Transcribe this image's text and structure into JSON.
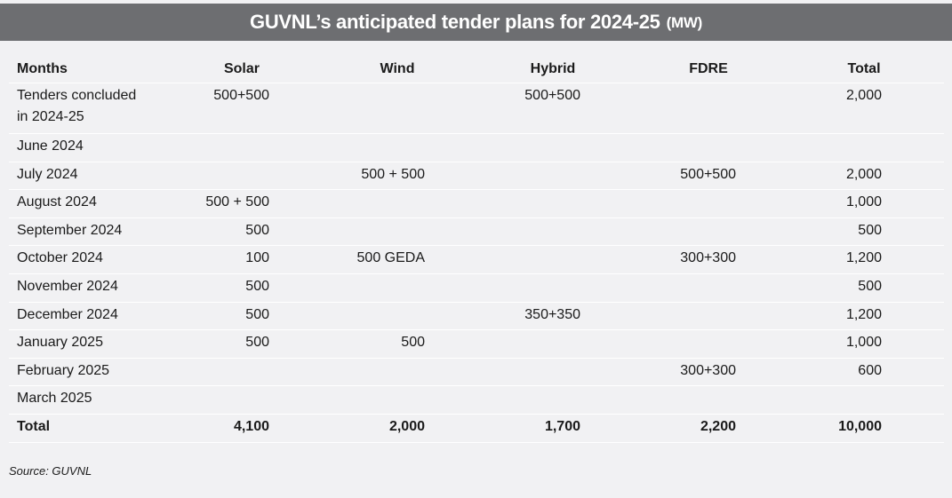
{
  "title": {
    "main": "GUVNL’s anticipated tender plans for 2024-25",
    "unit": "(MW)"
  },
  "table": {
    "headers": [
      "Months",
      "Solar",
      "Wind",
      "Hybrid",
      "FDRE",
      "Total"
    ],
    "rows": [
      [
        "Tenders concluded in 2024-25",
        "500+500",
        "",
        "500+500",
        "",
        "2,000"
      ],
      [
        "June 2024",
        "",
        "",
        "",
        "",
        ""
      ],
      [
        "July 2024",
        "",
        "500 + 500",
        "",
        "500+500",
        "2,000"
      ],
      [
        "August 2024",
        "500 + 500",
        "",
        "",
        "",
        "1,000"
      ],
      [
        "September 2024",
        "500",
        "",
        "",
        "",
        "500"
      ],
      [
        "October 2024",
        "100",
        "500 GEDA",
        "",
        "300+300",
        "1,200"
      ],
      [
        "November 2024",
        "500",
        "",
        "",
        "",
        "500"
      ],
      [
        "December 2024",
        "500",
        "",
        "350+350",
        "",
        "1,200"
      ],
      [
        "January 2025",
        "500",
        "500",
        "",
        "",
        "1,000"
      ],
      [
        "February 2025",
        "",
        "",
        "",
        "300+300",
        "600"
      ],
      [
        "March 2025",
        "",
        "",
        "",
        "",
        ""
      ]
    ],
    "total": [
      "Total",
      "4,100",
      "2,000",
      "1,700",
      "2,200",
      "10,000"
    ]
  },
  "source": "Source: GUVNL"
}
